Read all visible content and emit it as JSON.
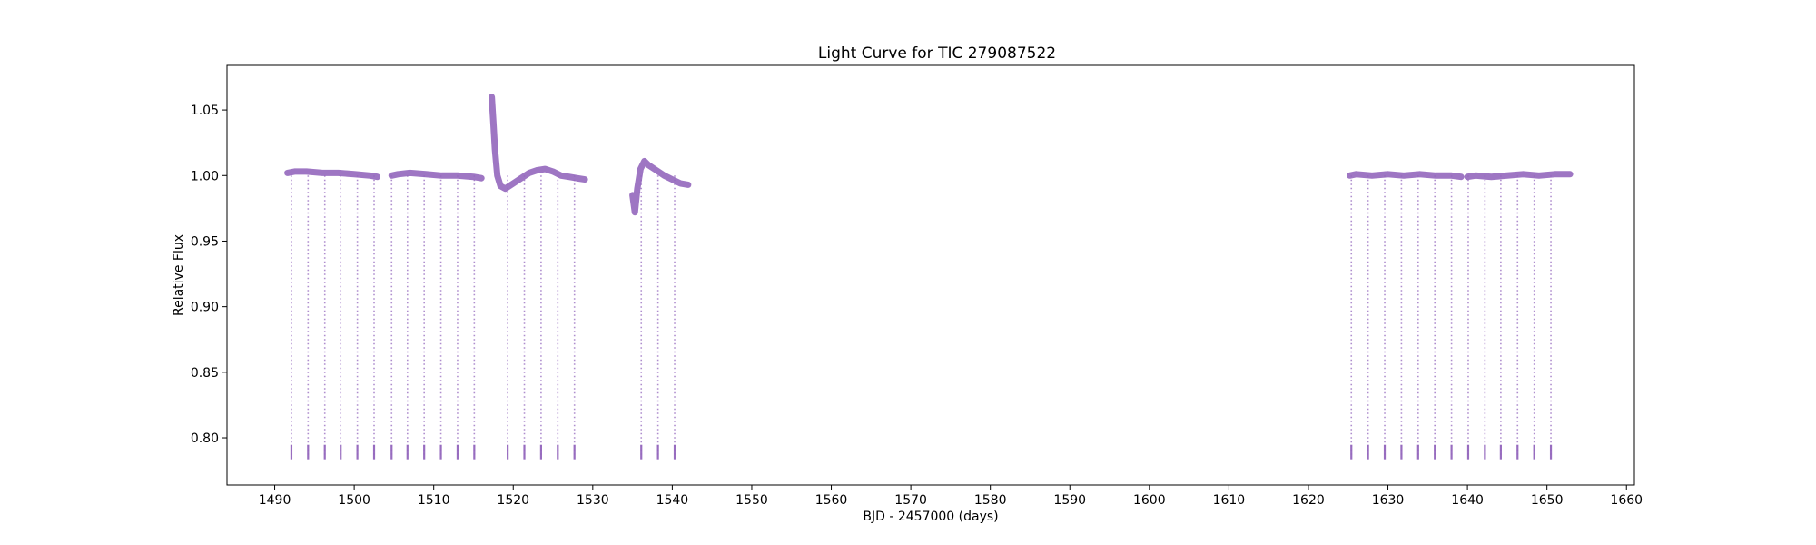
{
  "chart_data": {
    "type": "scatter",
    "title": "Light Curve for TIC 279087522",
    "xlabel": "BJD - 2457000 (days)",
    "ylabel": "Relative Flux",
    "xlim": [
      1484,
      1661
    ],
    "ylim": [
      0.764,
      1.084
    ],
    "xticks": [
      1490,
      1500,
      1510,
      1520,
      1530,
      1540,
      1550,
      1560,
      1570,
      1580,
      1590,
      1600,
      1610,
      1620,
      1630,
      1640,
      1650,
      1660
    ],
    "yticks": [
      0.8,
      0.85,
      0.9,
      0.95,
      1.0,
      1.05
    ],
    "xtick_labels": [
      "1490",
      "1500",
      "1510",
      "1520",
      "1530",
      "1540",
      "1550",
      "1560",
      "1570",
      "1580",
      "1590",
      "1600",
      "1610",
      "1620",
      "1630",
      "1640",
      "1650",
      "1660"
    ],
    "ytick_labels": [
      "0.80",
      "0.85",
      "0.90",
      "0.95",
      "1.00",
      "1.05"
    ],
    "grid": false,
    "legend": "none",
    "marker_color": "#9467bd",
    "eclipse_depth_flux": 0.785,
    "baseline_segments": [
      {
        "x": [
          1491.6,
          1492.5,
          1494.0,
          1496.0,
          1498.0,
          1500.0,
          1502.0,
          1502.9
        ],
        "y": [
          1.002,
          1.003,
          1.003,
          1.002,
          1.002,
          1.001,
          1.0,
          0.999
        ]
      },
      {
        "x": [
          1504.7,
          1505.5,
          1507.0,
          1509.0,
          1511.0,
          1513.0,
          1515.0,
          1516.0
        ],
        "y": [
          1.0,
          1.001,
          1.002,
          1.001,
          1.0,
          1.0,
          0.999,
          0.998
        ]
      },
      {
        "x": [
          1517.3,
          1517.5,
          1517.7,
          1518.0,
          1518.4,
          1519.0,
          1520.0,
          1521.0,
          1522.0,
          1523.0,
          1524.0,
          1525.0,
          1526.0,
          1527.0,
          1528.0,
          1529.0
        ],
        "y": [
          1.06,
          1.04,
          1.02,
          1.0,
          0.992,
          0.99,
          0.994,
          0.998,
          1.002,
          1.004,
          1.005,
          1.003,
          1.0,
          0.999,
          0.998,
          0.997
        ]
      },
      {
        "x": [
          1535.0,
          1535.3,
          1535.6,
          1536.0,
          1536.5,
          1537.0,
          1538.0,
          1539.0,
          1540.0,
          1541.0,
          1542.0
        ],
        "y": [
          0.985,
          0.972,
          0.99,
          1.005,
          1.011,
          1.008,
          1.004,
          1.0,
          0.997,
          0.994,
          0.993
        ]
      },
      {
        "x": [
          1625.2,
          1626.0,
          1628.0,
          1630.0,
          1632.0,
          1634.0,
          1636.0,
          1638.0,
          1639.2
        ],
        "y": [
          1.0,
          1.001,
          1.0,
          1.001,
          1.0,
          1.001,
          1.0,
          1.0,
          0.999
        ]
      },
      {
        "x": [
          1640.0,
          1641.0,
          1643.0,
          1645.0,
          1647.0,
          1649.0,
          1651.0,
          1652.9
        ],
        "y": [
          0.999,
          1.0,
          0.999,
          1.0,
          1.001,
          1.0,
          1.001,
          1.001
        ]
      }
    ],
    "eclipse_times": [
      1492.1,
      1494.2,
      1496.3,
      1498.3,
      1500.4,
      1502.5,
      1504.7,
      1506.7,
      1508.8,
      1510.9,
      1513.0,
      1515.1,
      1519.3,
      1521.4,
      1523.5,
      1525.6,
      1527.7,
      1536.1,
      1538.2,
      1540.3,
      1625.4,
      1627.5,
      1629.6,
      1631.7,
      1633.8,
      1635.9,
      1638.0,
      1640.1,
      1642.2,
      1644.2,
      1646.3,
      1648.4,
      1650.5
    ]
  }
}
